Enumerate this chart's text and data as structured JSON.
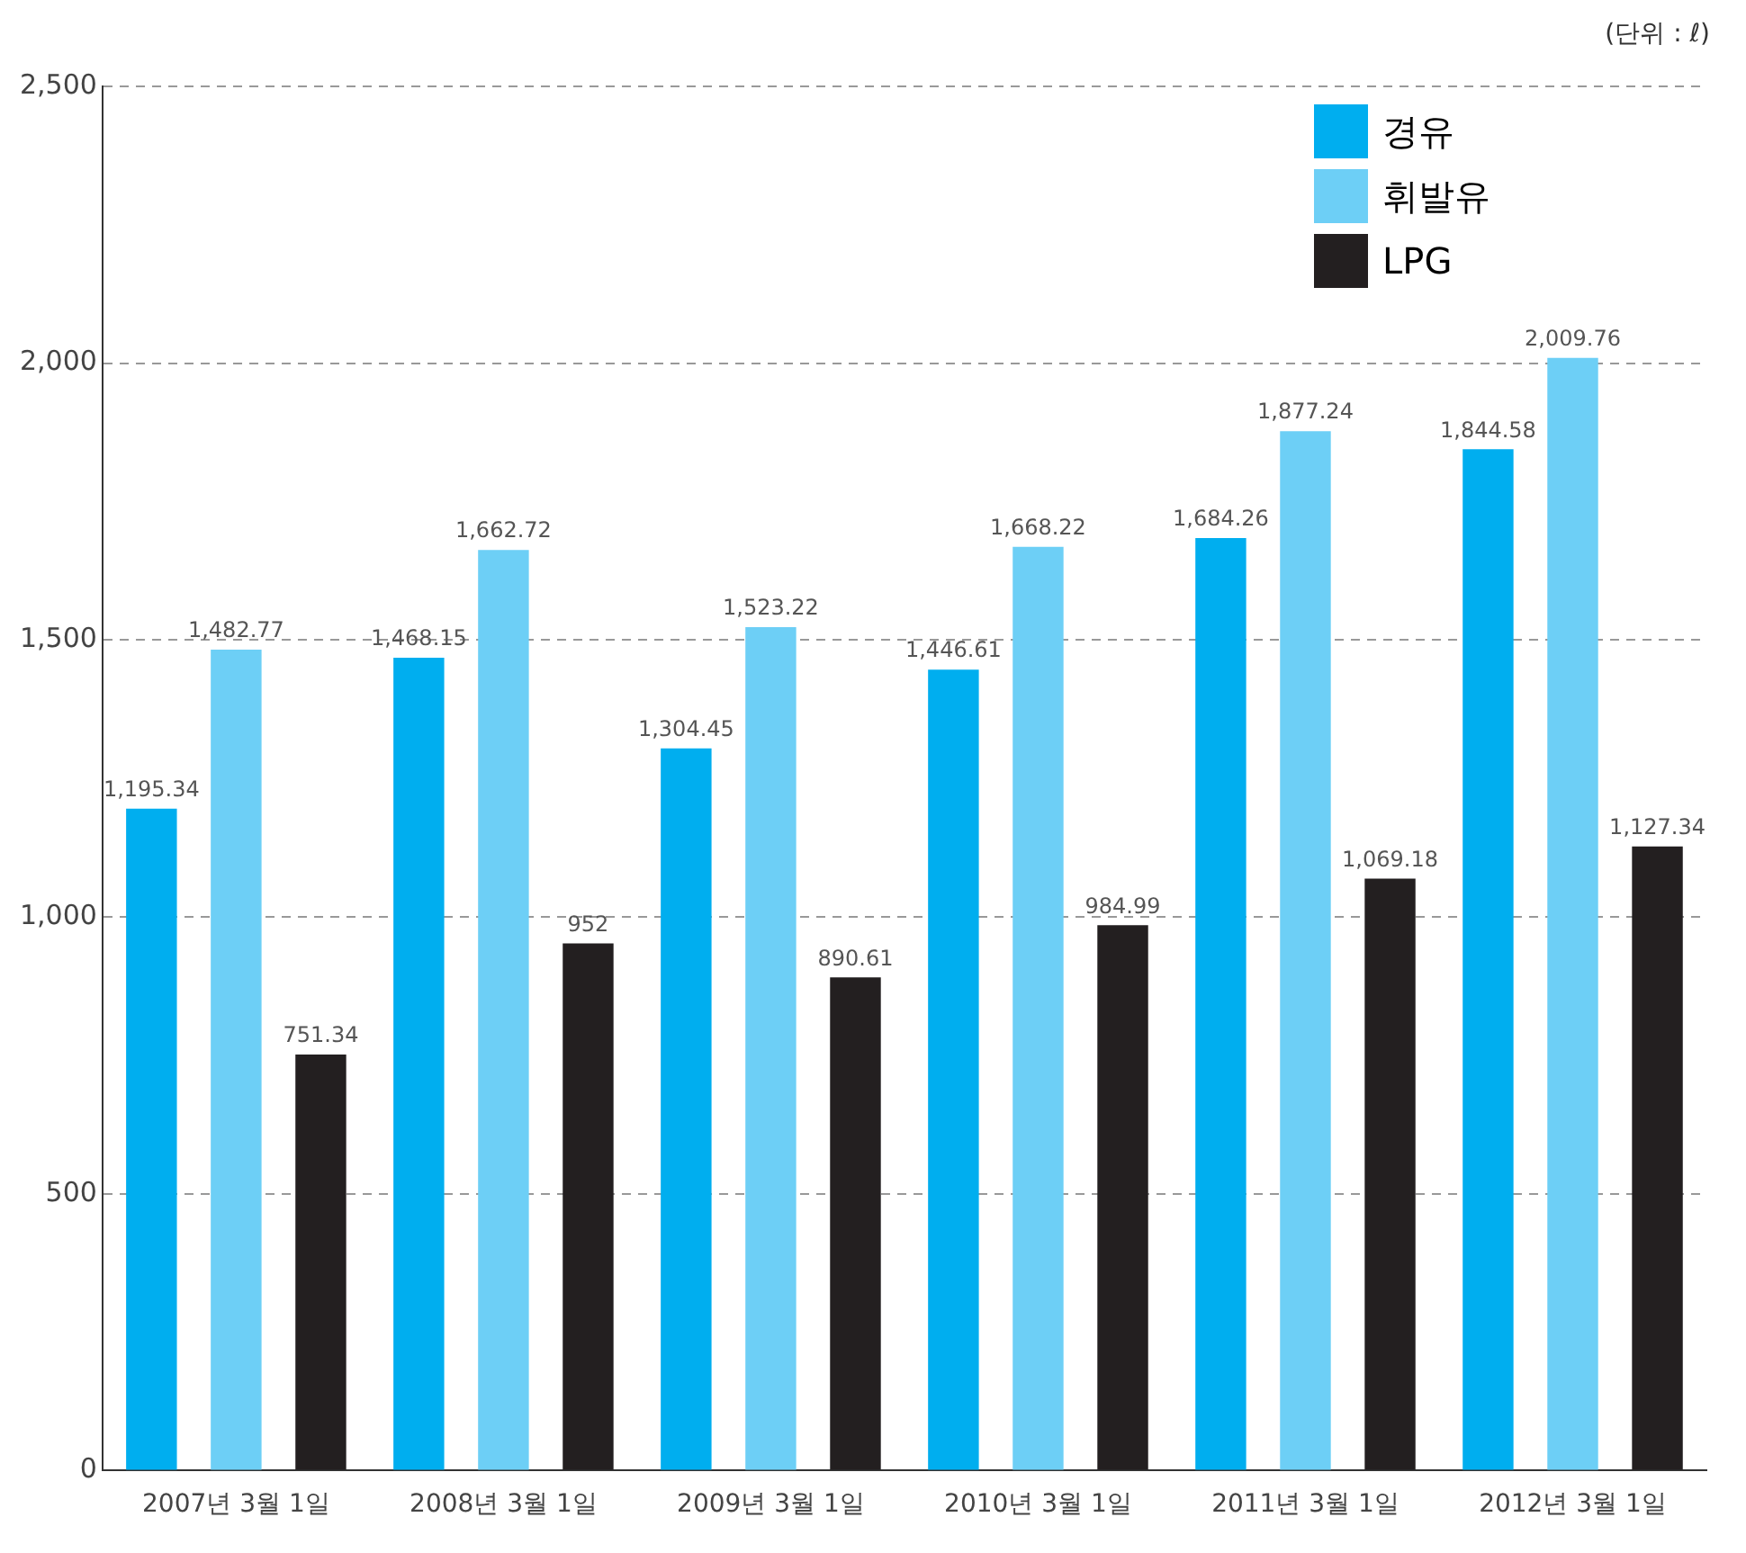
{
  "chart_data": {
    "type": "bar",
    "annotations": [
      "(단위 : ℓ)"
    ],
    "categories": [
      "2007년 3월 1일",
      "2008년 3월 1일",
      "2009년 3월 1일",
      "2010년 3월 1일",
      "2011년 3월 1일",
      "2012년 3월 1일"
    ],
    "series": [
      {
        "name": "경유",
        "color": "#00aeef",
        "values": [
          1195.34,
          1468.15,
          1304.45,
          1446.61,
          1684.26,
          1844.58
        ],
        "value_labels": [
          "1,195.34",
          "1,468.15",
          "1,304.45",
          "1,446.61",
          "1,684.26",
          "1,844.58"
        ]
      },
      {
        "name": "휘발유",
        "color": "#6dcff6",
        "values": [
          1482.77,
          1662.72,
          1523.22,
          1668.22,
          1877.24,
          2009.76
        ],
        "value_labels": [
          "1,482.77",
          "1,662.72",
          "1,523.22",
          "1,668.22",
          "1,877.24",
          "2,009.76"
        ]
      },
      {
        "name": "LPG",
        "color": "#231f20",
        "values": [
          751.34,
          952,
          890.61,
          984.99,
          1069.18,
          1127.34
        ],
        "value_labels": [
          "751.34",
          "952",
          "890.61",
          "984.99",
          "1,069.18",
          "1,127.34"
        ]
      }
    ],
    "ylim": [
      0,
      2500
    ],
    "yticks": [
      0,
      {
        "value": 500,
        "label": "500"
      },
      {
        "value": 1000,
        "label": "1,000"
      },
      {
        "value": 1500,
        "label": "1,500"
      },
      {
        "value": 2000,
        "label": "2,000"
      },
      {
        "value": 2500,
        "label": "2,500"
      }
    ],
    "grid": "y",
    "legend": "top right"
  }
}
